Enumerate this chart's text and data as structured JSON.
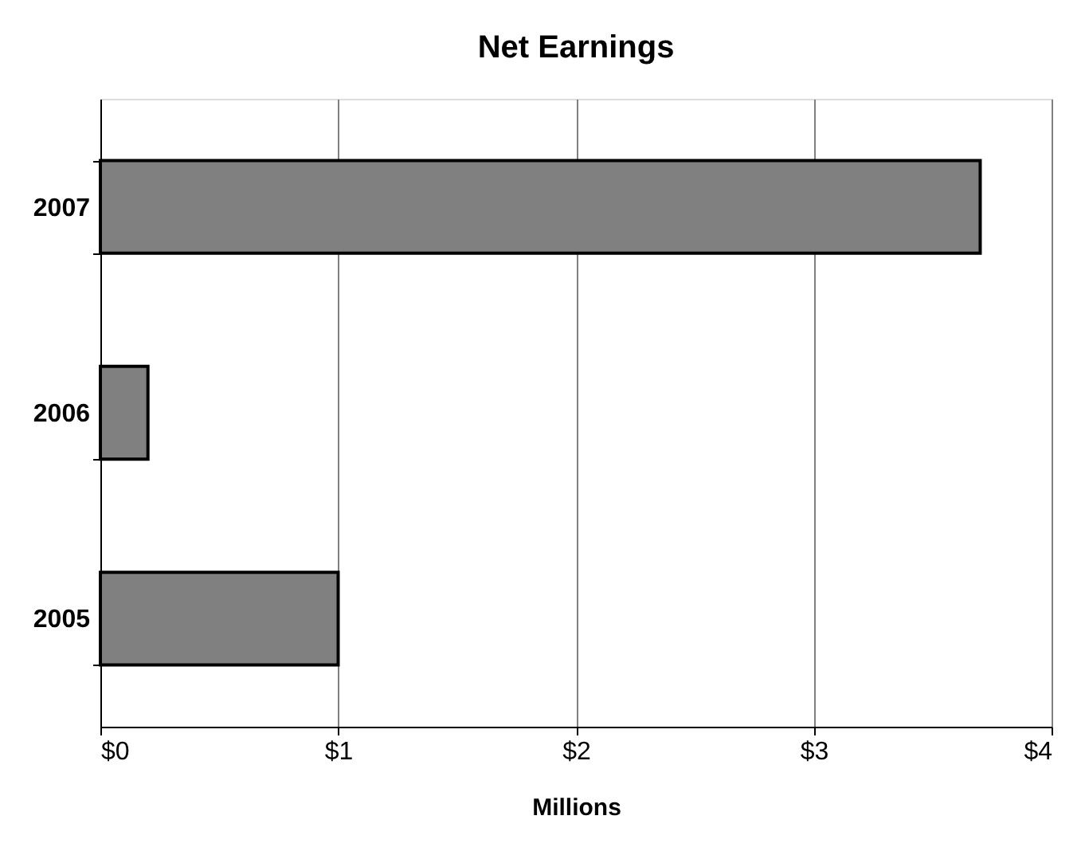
{
  "chart_data": {
    "type": "bar",
    "orientation": "horizontal",
    "title": "Net Earnings",
    "xlabel": "Millions",
    "categories": [
      "2007",
      "2006",
      "2005"
    ],
    "values": [
      3.7,
      0.2,
      1.0
    ],
    "color": "#808080",
    "xlim": [
      0,
      4
    ],
    "xticks": [
      {
        "value": 0,
        "label": "$0"
      },
      {
        "value": 1,
        "label": "$1"
      },
      {
        "value": 2,
        "label": "$2"
      },
      {
        "value": 3,
        "label": "$3"
      },
      {
        "value": 4,
        "label": "$4"
      }
    ],
    "grid": "x"
  }
}
